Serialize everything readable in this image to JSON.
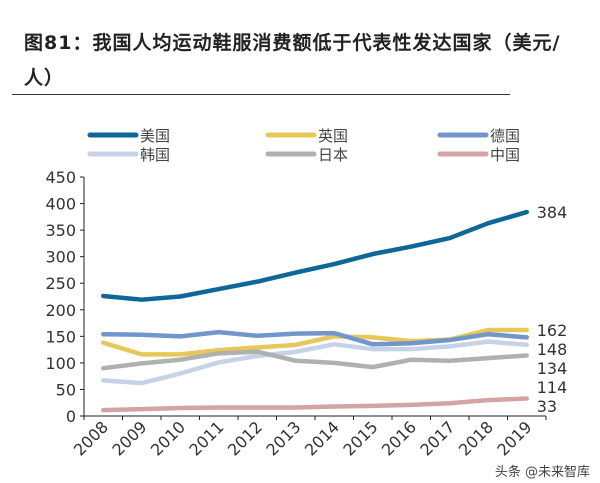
{
  "chart_data": {
    "type": "line",
    "title": "图81：我国人均运动鞋服消费额低于代表性发达国家（美元/人）",
    "x": [
      "2008",
      "2009",
      "2010",
      "2011",
      "2012",
      "2013",
      "2014",
      "2015",
      "2016",
      "2017",
      "2018",
      "2019"
    ],
    "ylim": [
      0,
      450
    ],
    "yticks": [
      0,
      50,
      100,
      150,
      200,
      250,
      300,
      350,
      400,
      450
    ],
    "legend_position": "top",
    "grid": false,
    "series": [
      {
        "name": "美国",
        "color": "#0f6699",
        "values": [
          226,
          219,
          225,
          239,
          253,
          270,
          286,
          305,
          319,
          335,
          363,
          384
        ],
        "end_label": "384"
      },
      {
        "name": "英国",
        "color": "#e6c85a",
        "values": [
          138,
          116,
          116,
          124,
          129,
          134,
          150,
          148,
          141,
          144,
          162,
          162
        ],
        "end_label": "162"
      },
      {
        "name": "德国",
        "color": "#7196cb",
        "values": [
          154,
          153,
          150,
          158,
          151,
          155,
          156,
          135,
          137,
          143,
          154,
          148
        ],
        "end_label": "148"
      },
      {
        "name": "韩国",
        "color": "#c6d3e6",
        "values": [
          67,
          62,
          80,
          101,
          113,
          121,
          135,
          126,
          126,
          131,
          140,
          134
        ],
        "end_label": "134"
      },
      {
        "name": "日本",
        "color": "#b0b0b0",
        "values": [
          90,
          99,
          106,
          118,
          121,
          104,
          100,
          92,
          106,
          104,
          109,
          114
        ],
        "end_label": "114"
      },
      {
        "name": "中国",
        "color": "#d4a3a3",
        "values": [
          11,
          13,
          15,
          16,
          16,
          16,
          18,
          19,
          21,
          24,
          30,
          33
        ],
        "end_label": "33"
      }
    ]
  },
  "watermark": "头条 @未来智库"
}
